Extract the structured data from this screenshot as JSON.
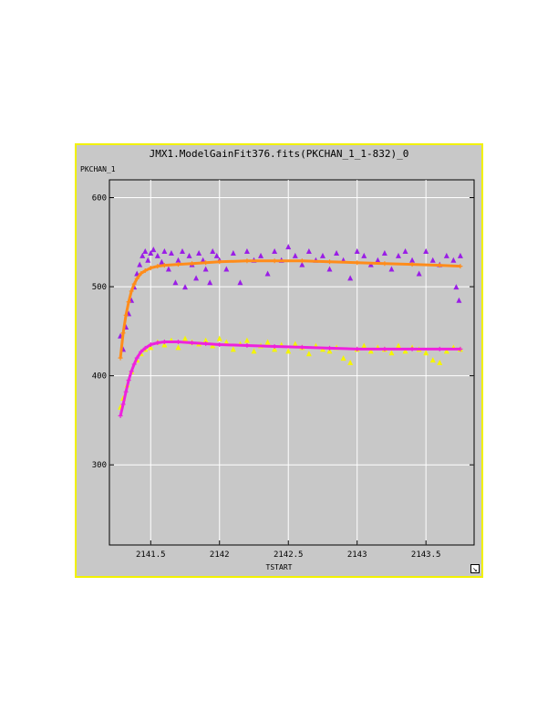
{
  "chart_data": {
    "type": "scatter",
    "title": "JMX1.ModelGainFit376.fits(PKCHAN_1_1-832)_0",
    "xlabel": "TSTART",
    "ylabel": "PKCHAN_1",
    "xlim": [
      2141.2,
      2143.85
    ],
    "ylim": [
      210,
      620
    ],
    "x_ticks": [
      2141.5,
      2142,
      2142.5,
      2143,
      2143.5
    ],
    "x_tick_labels": [
      "2141.5",
      "2142",
      "2142.5",
      "2143",
      "2143.5"
    ],
    "y_ticks": [
      300,
      400,
      500,
      600
    ],
    "y_tick_labels": [
      "300",
      "400",
      "500",
      "600"
    ],
    "grid": true,
    "series": [
      {
        "color": "#9a1ee6",
        "marker": "triangle",
        "x": [
          2141.28,
          2141.3,
          2141.32,
          2141.34,
          2141.36,
          2141.38,
          2141.4,
          2141.42,
          2141.44,
          2141.46,
          2141.48,
          2141.5,
          2141.52,
          2141.55,
          2141.58,
          2141.6,
          2141.63,
          2141.65,
          2141.68,
          2141.7,
          2141.73,
          2141.75,
          2141.78,
          2141.8,
          2141.83,
          2141.85,
          2141.88,
          2141.9,
          2141.93,
          2141.95,
          2141.98,
          2142.0,
          2142.05,
          2142.1,
          2142.15,
          2142.2,
          2142.25,
          2142.3,
          2142.35,
          2142.4,
          2142.45,
          2142.5,
          2142.55,
          2142.6,
          2142.65,
          2142.7,
          2142.75,
          2142.8,
          2142.85,
          2142.9,
          2142.95,
          2143.0,
          2143.05,
          2143.1,
          2143.15,
          2143.2,
          2143.25,
          2143.3,
          2143.35,
          2143.4,
          2143.45,
          2143.5,
          2143.55,
          2143.6,
          2143.65,
          2143.7,
          2143.72,
          2143.74,
          2143.75
        ],
        "y": [
          445,
          430,
          455,
          470,
          485,
          500,
          515,
          525,
          535,
          540,
          530,
          538,
          542,
          535,
          528,
          540,
          520,
          538,
          505,
          530,
          540,
          500,
          535,
          525,
          510,
          538,
          530,
          520,
          505,
          540,
          535,
          530,
          520,
          538,
          505,
          540,
          530,
          535,
          515,
          540,
          530,
          545,
          535,
          525,
          540,
          530,
          535,
          520,
          538,
          530,
          510,
          540,
          535,
          525,
          530,
          538,
          520,
          535,
          540,
          530,
          515,
          540,
          530,
          525,
          535,
          530,
          500,
          485,
          535
        ]
      },
      {
        "color": "#f5f500",
        "marker": "triangle",
        "x": [
          2141.28,
          2141.3,
          2141.33,
          2141.36,
          2141.4,
          2141.43,
          2141.46,
          2141.5,
          2141.55,
          2141.6,
          2141.65,
          2141.7,
          2141.75,
          2141.8,
          2141.85,
          2141.9,
          2141.95,
          2142.0,
          2142.05,
          2142.1,
          2142.15,
          2142.2,
          2142.25,
          2142.3,
          2142.35,
          2142.4,
          2142.45,
          2142.5,
          2142.55,
          2142.6,
          2142.65,
          2142.7,
          2142.75,
          2142.8,
          2142.85,
          2142.9,
          2142.95,
          2143.0,
          2143.05,
          2143.1,
          2143.15,
          2143.2,
          2143.25,
          2143.3,
          2143.35,
          2143.4,
          2143.45,
          2143.5,
          2143.55,
          2143.6,
          2143.65,
          2143.7,
          2143.75
        ],
        "y": [
          365,
          375,
          390,
          405,
          418,
          425,
          430,
          432,
          438,
          435,
          440,
          432,
          442,
          438,
          436,
          440,
          434,
          442,
          438,
          430,
          436,
          440,
          428,
          434,
          438,
          430,
          435,
          428,
          436,
          432,
          425,
          434,
          430,
          428,
          432,
          420,
          415,
          430,
          434,
          428,
          432,
          430,
          426,
          434,
          428,
          432,
          430,
          426,
          418,
          415,
          428,
          432,
          430
        ]
      },
      {
        "color": "#ff8c1a",
        "marker": "plus",
        "x": [
          2141.28,
          2141.3,
          2141.32,
          2141.34,
          2141.36,
          2141.38,
          2141.4,
          2141.43,
          2141.46,
          2141.5,
          2141.55,
          2141.6,
          2141.7,
          2141.8,
          2141.9,
          2142.0,
          2142.2,
          2142.4,
          2142.6,
          2142.8,
          2143.0,
          2143.2,
          2143.4,
          2143.6,
          2143.75
        ],
        "y": [
          420,
          448,
          468,
          483,
          495,
          503,
          509,
          515,
          518,
          521,
          523,
          524,
          525,
          526,
          527,
          528,
          529,
          529,
          529,
          528,
          527,
          526,
          525,
          524,
          523
        ]
      },
      {
        "color": "#ee22dd",
        "marker": "plus",
        "x": [
          2141.28,
          2141.3,
          2141.32,
          2141.34,
          2141.36,
          2141.38,
          2141.4,
          2141.43,
          2141.46,
          2141.5,
          2141.55,
          2141.6,
          2141.7,
          2141.8,
          2141.9,
          2142.0,
          2142.2,
          2142.4,
          2142.6,
          2142.8,
          2143.0,
          2143.2,
          2143.4,
          2143.6,
          2143.75
        ],
        "y": [
          355,
          368,
          382,
          395,
          405,
          413,
          420,
          427,
          431,
          435,
          437,
          438,
          438,
          437,
          436,
          435,
          434,
          433,
          432,
          431,
          430,
          430,
          430,
          430,
          430
        ]
      }
    ]
  }
}
